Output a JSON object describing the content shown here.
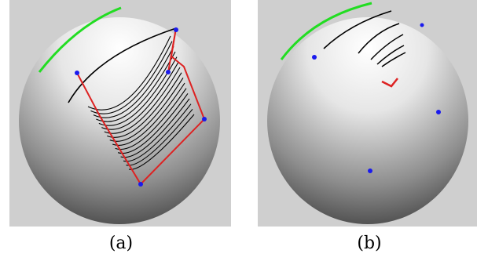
{
  "figure": {
    "panels": [
      {
        "id": "a",
        "caption": "(a)"
      },
      {
        "id": "b",
        "caption": "(b)"
      }
    ]
  },
  "colors": {
    "background": "#cfcfcf",
    "sphere_light": "#ffffff",
    "sphere_dark": "#4a4a4a",
    "green_curve": "#22dd22",
    "red_curve": "#dd2222",
    "black_curve": "#000000",
    "blue_point": "#1a1aee"
  }
}
